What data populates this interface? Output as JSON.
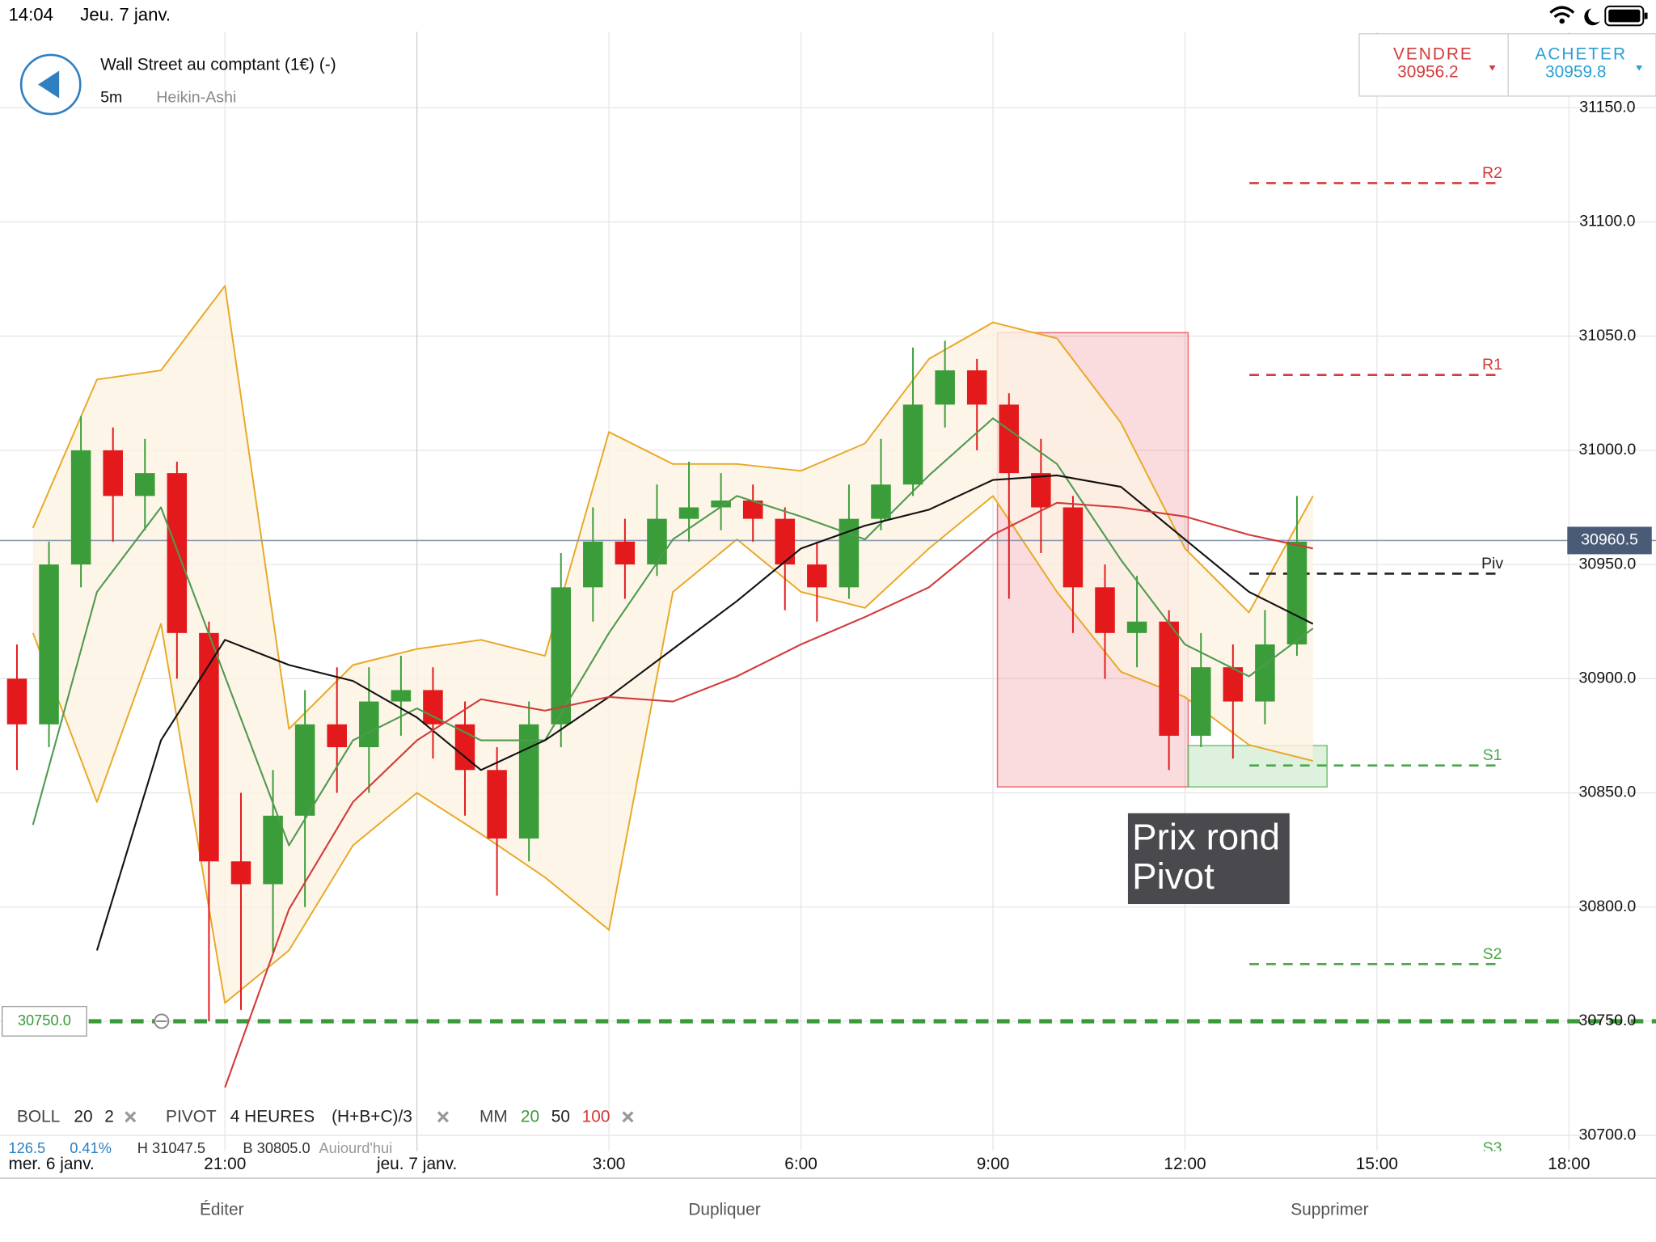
{
  "status_bar": {
    "time": "14:04",
    "date": "Jeu. 7 janv."
  },
  "header": {
    "instrument": "Wall Street au comptant (1€) (-)",
    "interval": "5m",
    "chart_style": "Heikin-Ashi"
  },
  "quote": {
    "sell_label": "VENDRE",
    "sell_price": 30956.2,
    "buy_label": "ACHETER",
    "buy_price": 30959.8
  },
  "chart_data": {
    "type": "candlestick",
    "grid": true,
    "xlim": [
      17.485,
      43.36
    ],
    "ylim": [
      30693.1,
      31183.3
    ],
    "xticks": [
      {
        "value": 21,
        "label": "21:00"
      },
      {
        "value": 24,
        "label": "jeu. 7 janv."
      },
      {
        "value": 27,
        "label": "3:00"
      },
      {
        "value": 30,
        "label": "6:00"
      },
      {
        "value": 33,
        "label": "9:00"
      },
      {
        "value": 36,
        "label": "12:00"
      },
      {
        "value": 39,
        "label": "15:00"
      },
      {
        "value": 42,
        "label": "18:00"
      }
    ],
    "start_label": "mer. 6 janv.",
    "yticks": [
      {
        "value": 31150,
        "label": "31150.0"
      },
      {
        "value": 31100,
        "label": "31100.0"
      },
      {
        "value": 31050,
        "label": "31050.0"
      },
      {
        "value": 31000,
        "label": "31000.0"
      },
      {
        "value": 30950,
        "label": "30950.0"
      },
      {
        "value": 30900,
        "label": "30900.0"
      },
      {
        "value": 30850,
        "label": "30850.0"
      },
      {
        "value": 30800,
        "label": "30800.0"
      },
      {
        "value": 30750,
        "label": "30750.0"
      },
      {
        "value": 30700,
        "label": "30700.0"
      }
    ],
    "candles": {
      "up_color": "#3a9d3a",
      "down_color": "#e3191c",
      "time": [
        17.5,
        18,
        18.5,
        19,
        19.5,
        20,
        20.5,
        21,
        21.5,
        22,
        22.5,
        23,
        23.5,
        24,
        24.5,
        25,
        25.5,
        26,
        26.5,
        27,
        27.5,
        28,
        28.5,
        29,
        29.5,
        30,
        30.5,
        31,
        31.5,
        32,
        32.5,
        33,
        33.5,
        34,
        34.5,
        35,
        35.5,
        36,
        36.5,
        37,
        37.5
      ],
      "open": [
        30900,
        30880,
        30950,
        31000,
        30980,
        30990,
        30920,
        30820,
        30810,
        30840,
        30880,
        30870,
        30890,
        30895,
        30880,
        30860,
        30830,
        30880,
        30940,
        30960,
        30950,
        30970,
        30975,
        30978,
        30970,
        30950,
        30940,
        30970,
        30985,
        31020,
        31035,
        31020,
        30990,
        30975,
        30940,
        30920,
        30925,
        30875,
        30905,
        30890,
        30915
      ],
      "high": [
        30915,
        30960,
        31015,
        31010,
        31005,
        30995,
        30925,
        30850,
        30860,
        30895,
        30905,
        30905,
        30910,
        30905,
        30890,
        30870,
        30890,
        30955,
        30975,
        30970,
        30985,
        30995,
        30990,
        30985,
        30975,
        30960,
        30985,
        31005,
        31045,
        31048,
        31040,
        31025,
        31005,
        30980,
        30950,
        30945,
        30930,
        30920,
        30915,
        30930,
        30980
      ],
      "low": [
        30860,
        30870,
        30940,
        30960,
        30965,
        30900,
        30750,
        30755,
        30780,
        30800,
        30850,
        30850,
        30875,
        30865,
        30840,
        30805,
        30820,
        30870,
        30925,
        30935,
        30945,
        30960,
        30965,
        30960,
        30930,
        30925,
        30935,
        30965,
        30980,
        31010,
        31000,
        30935,
        30955,
        30920,
        30900,
        30905,
        30860,
        30870,
        30865,
        30880,
        30910
      ],
      "close": [
        30880,
        30950,
        31000,
        30980,
        30990,
        30920,
        30820,
        30810,
        30840,
        30880,
        30870,
        30890,
        30895,
        30880,
        30860,
        30830,
        30880,
        30940,
        30960,
        30950,
        30970,
        30975,
        30978,
        30970,
        30950,
        30940,
        30970,
        30985,
        31020,
        31035,
        31020,
        30990,
        30975,
        30940,
        30920,
        30925,
        30875,
        30905,
        30890,
        30915,
        30960
      ]
    },
    "x": [
      18,
      19,
      20,
      21,
      22,
      23,
      24,
      25,
      26,
      27,
      28,
      29,
      30,
      31,
      32,
      33,
      34,
      35,
      36,
      37,
      38
    ],
    "band": {
      "fill": "#fdf2e2",
      "color": "#e9a825",
      "upper": [
        30966,
        31031,
        31035,
        31072,
        30878,
        30906,
        30913,
        30917,
        30910,
        31008,
        30994,
        30994,
        30991,
        31003,
        31040,
        31056,
        31049,
        31012,
        30957,
        30929,
        30980
      ],
      "lower": [
        30920,
        30846,
        30924,
        30758,
        30781,
        30827,
        30850,
        30832,
        30813,
        30790,
        30938,
        30961,
        30938,
        30931,
        30957,
        30980,
        30938,
        30903,
        30892,
        30871,
        30864
      ]
    },
    "series": [
      {
        "color": "#4f9a4f",
        "values": [
          30836,
          30938,
          30975,
          30901,
          30827,
          30873,
          30887,
          30873,
          30873,
          30920,
          30961,
          30980,
          30971,
          30961,
          30989,
          31014,
          30994,
          30952,
          30915,
          30901,
          30922
        ]
      },
      {
        "color": "#111111",
        "values": [
          null,
          30781,
          30873,
          30917,
          30906,
          30899,
          30883,
          30860,
          30873,
          30892,
          30913,
          30934,
          30957,
          30967,
          30974,
          30987,
          30989,
          30984,
          30961,
          30938,
          30924
        ]
      },
      {
        "color": "#d23a3a",
        "values": [
          null,
          null,
          null,
          30721,
          30799,
          30846,
          30873,
          30891,
          30886,
          30892,
          30890,
          30901,
          30915,
          30927,
          30940,
          30963,
          30977,
          30975,
          30971,
          30963,
          30957
        ]
      }
    ],
    "pivots": [
      {
        "name": "R2",
        "value": 31117,
        "color": "#d33b3b"
      },
      {
        "name": "R1",
        "value": 31033,
        "color": "#d33b3b"
      },
      {
        "name": "Piv",
        "value": 30946,
        "color": "#222222"
      },
      {
        "name": "S1",
        "value": 30862,
        "color": "#4aa64a"
      },
      {
        "name": "S2",
        "value": 30775,
        "color": "#4aa64a"
      },
      {
        "name": "S3",
        "value": 30690,
        "color": "#4aa64a"
      }
    ],
    "zones": [
      {
        "x": [
          33.07,
          36.05
        ],
        "y": [
          30852.6,
          31051.5
        ],
        "color": "#e8505a"
      },
      {
        "x": [
          36.05,
          38.22
        ],
        "y": [
          30852.6,
          30870.7
        ],
        "color": "#5cb85c"
      }
    ],
    "alert": {
      "value": 30750,
      "label": "30750.0",
      "color": "#3a9a3a"
    },
    "current_price": {
      "value": 30960.5,
      "color": "#8b9ab0",
      "label_color": "#4a5b78"
    },
    "annotation": {
      "lines": [
        "Prix rond",
        "Pivot"
      ]
    }
  },
  "indicators": {
    "boll": [
      "BOLL",
      "20",
      "2"
    ],
    "pivot": [
      "PIVOT",
      "4 HEURES",
      "(H+B+C)/3"
    ],
    "mm": [
      "MM",
      "20",
      "50",
      "100"
    ],
    "stats": [
      "126.5",
      "0.41%",
      "H 31047.5",
      "B 30805.0",
      "Aujourd'hui"
    ]
  },
  "toolbar": [
    "Éditer",
    "Dupliquer",
    "Supprimer"
  ]
}
